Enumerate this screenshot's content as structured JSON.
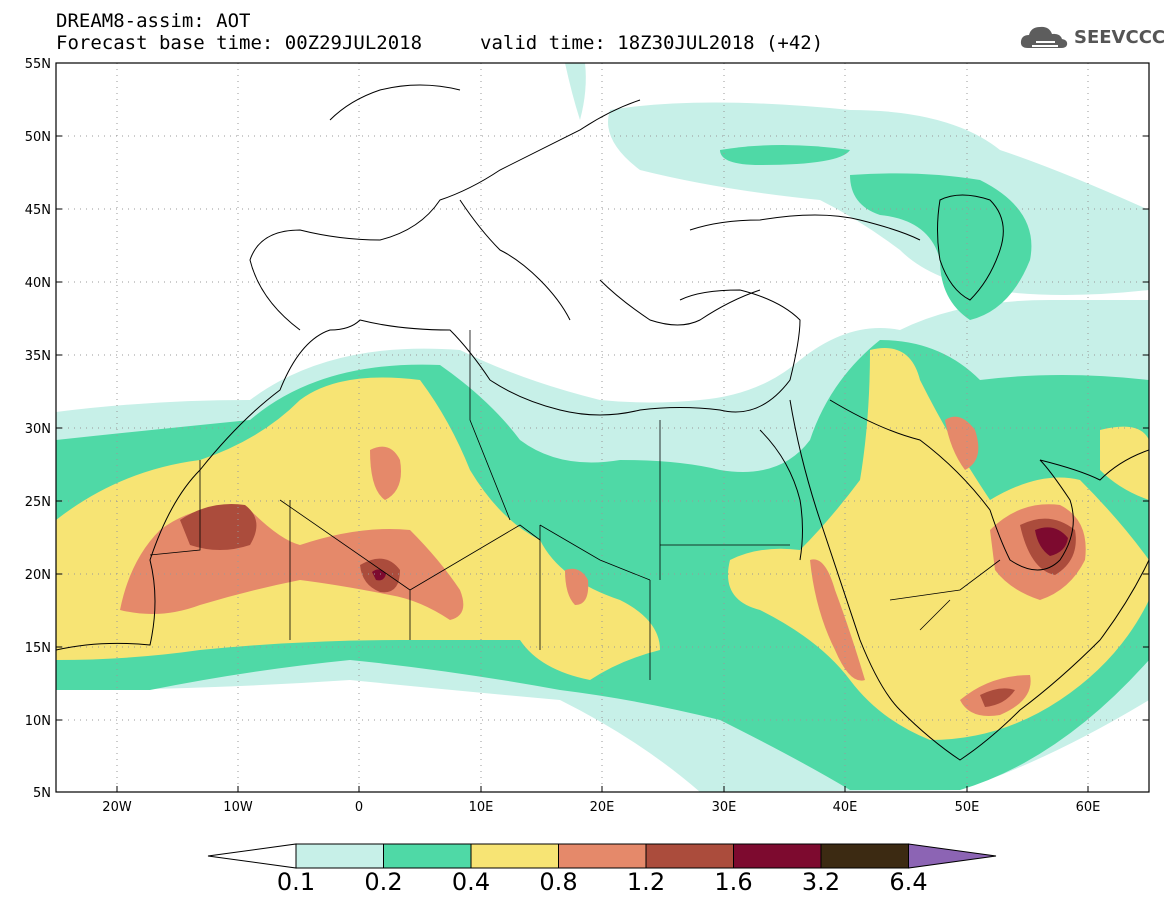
{
  "header": {
    "line1": "DREAM8-assim: AOT",
    "line2": "Forecast base time: 00Z29JUL2018",
    "valid": "valid time: 18Z30JUL2018 (+42)"
  },
  "logo": {
    "text": "SEEVCCC",
    "icon": "cloud-icon"
  },
  "map": {
    "lat_labels": [
      "55N",
      "50N",
      "45N",
      "40N",
      "35N",
      "30N",
      "25N",
      "20N",
      "15N",
      "10N",
      "5N"
    ],
    "lon_labels": [
      "20W",
      "10W",
      "0",
      "10E",
      "20E",
      "30E",
      "40E",
      "50E",
      "60E"
    ],
    "extent": {
      "lon_min": -25,
      "lon_max": 65,
      "lat_min": 5,
      "lat_max": 55
    },
    "grid": "dotted"
  },
  "colorbar": {
    "labels": [
      "0.1",
      "0.2",
      "0.4",
      "0.8",
      "1.2",
      "1.6",
      "3.2",
      "6.4"
    ],
    "colors": [
      "#c7f0e8",
      "#4fd9a6",
      "#f7e474",
      "#e5896a",
      "#ab4c3c",
      "#7d0a2f",
      "#3c2a12"
    ],
    "under_color": "#ffffff",
    "over_color": "#8c64b4"
  }
}
